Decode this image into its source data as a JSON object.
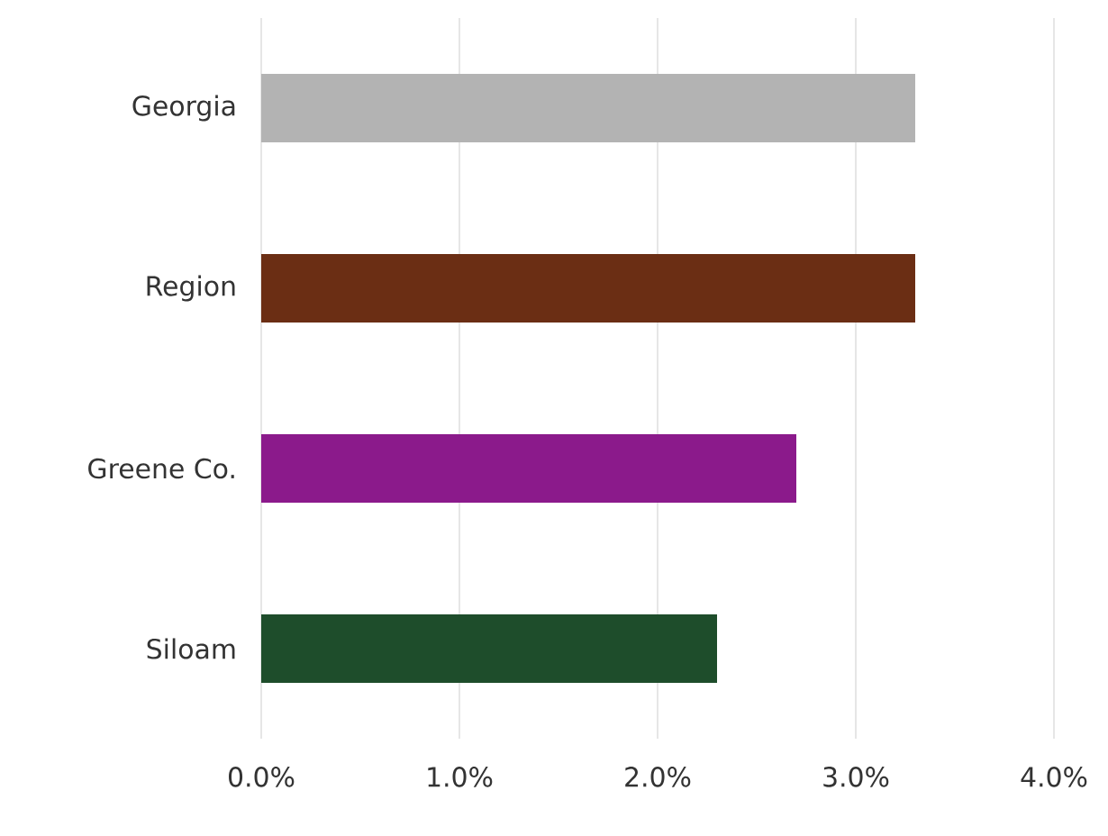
{
  "chart_data": {
    "type": "bar",
    "orientation": "horizontal",
    "categories": [
      "Georgia",
      "Region",
      "Greene Co.",
      "Siloam"
    ],
    "values": [
      3.3,
      3.3,
      2.7,
      2.3
    ],
    "colors": [
      "#b3b3b3",
      "#6b2e14",
      "#8b1a8b",
      "#1e4d2b"
    ],
    "xlim": [
      0,
      4
    ],
    "xticks": [
      {
        "value": 0,
        "label": "0.0%"
      },
      {
        "value": 1,
        "label": "1.0%"
      },
      {
        "value": 2,
        "label": "2.0%"
      },
      {
        "value": 3,
        "label": "3.0%"
      },
      {
        "value": 4,
        "label": "4.0%"
      }
    ],
    "grid": "x"
  }
}
